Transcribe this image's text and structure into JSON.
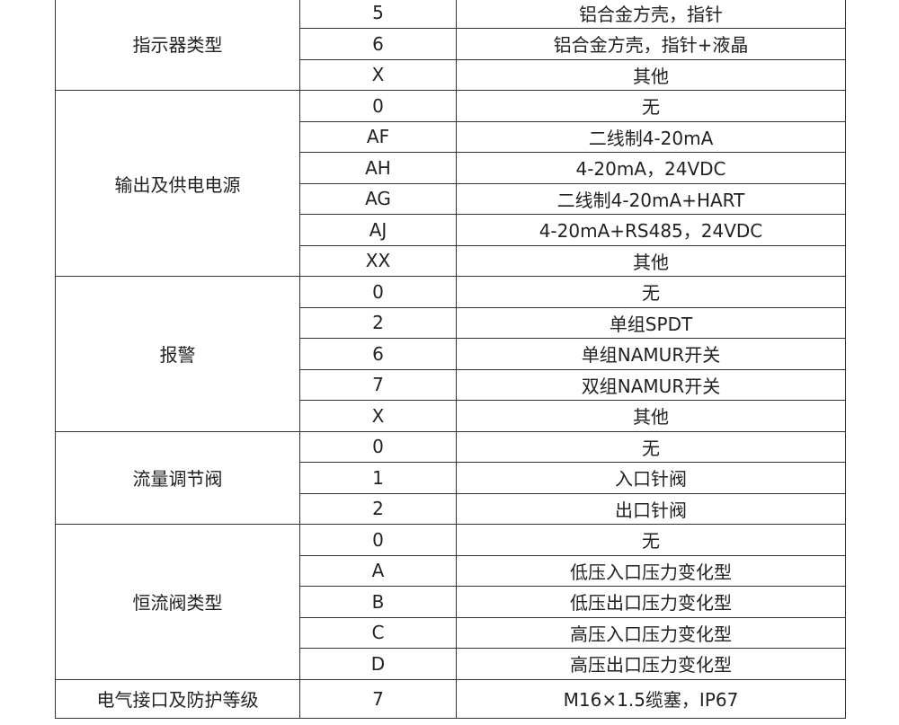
{
  "table": {
    "groups": [
      {
        "label": "指示器类型",
        "rows": [
          [
            "5",
            "铝合金方壳，指针"
          ],
          [
            "6",
            "铝合金方壳，指针+液晶"
          ],
          [
            "X",
            "其他"
          ]
        ]
      },
      {
        "label": "输出及供电电源",
        "rows": [
          [
            "0",
            "无"
          ],
          [
            "AF",
            "二线制4-20mA"
          ],
          [
            "AH",
            "4-20mA，24VDC"
          ],
          [
            "AG",
            "二线制4-20mA+HART"
          ],
          [
            "AJ",
            "4-20mA+RS485，24VDC"
          ],
          [
            "XX",
            "其他"
          ]
        ]
      },
      {
        "label": "报警",
        "rows": [
          [
            "0",
            "无"
          ],
          [
            "2",
            "单组SPDT"
          ],
          [
            "6",
            "单组NAMUR开关"
          ],
          [
            "7",
            "双组NAMUR开关"
          ],
          [
            "X",
            "其他"
          ]
        ]
      },
      {
        "label": "流量调节阀",
        "rows": [
          [
            "0",
            "无"
          ],
          [
            "1",
            "入口针阀"
          ],
          [
            "2",
            "出口针阀"
          ]
        ]
      },
      {
        "label": "恒流阀类型",
        "rows": [
          [
            "0",
            "无"
          ],
          [
            "A",
            "低压入口压力变化型"
          ],
          [
            "B",
            "低压出口压力变化型"
          ],
          [
            "C",
            "高压入口压力变化型"
          ],
          [
            "D",
            "高压出口压力变化型"
          ]
        ]
      },
      {
        "label": "电气接口及防护等级",
        "rows": [
          [
            "7",
            "M16×1.5缆塞，IP67"
          ]
        ]
      }
    ]
  }
}
